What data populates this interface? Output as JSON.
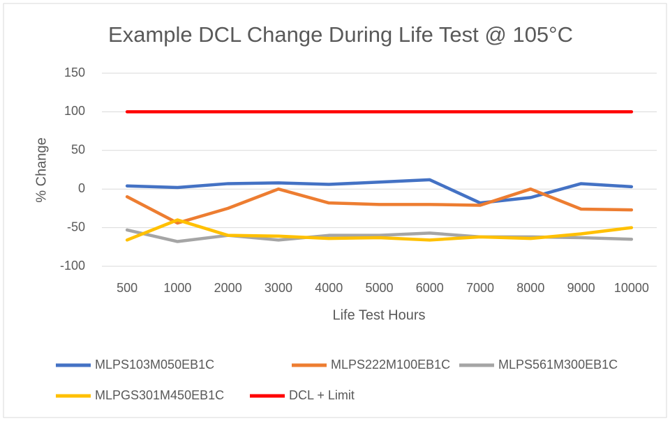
{
  "chart_data": {
    "type": "line",
    "title": "Example DCL Change During Life Test @ 105°C",
    "x_label": "Life Test Hours",
    "y_label": "% Change",
    "categories": [
      "500",
      "1000",
      "2000",
      "3000",
      "4000",
      "5000",
      "6000",
      "7000",
      "8000",
      "9000",
      "10000"
    ],
    "series": [
      {
        "name": "MLPS103M050EB1C",
        "color": "#4472c4",
        "values": [
          4,
          2,
          7,
          8,
          6,
          9,
          12,
          -18,
          -11,
          7,
          3
        ]
      },
      {
        "name": "MLPS222M100EB1C",
        "color": "#ed7d31",
        "values": [
          -10,
          -44,
          -25,
          0,
          -18,
          -20,
          -20,
          -21,
          0,
          -26,
          -27
        ]
      },
      {
        "name": "MLPS561M300EB1C",
        "color": "#a5a5a5",
        "values": [
          -53,
          -68,
          -60,
          -66,
          -60,
          -60,
          -57,
          -62,
          -62,
          -63,
          -65
        ]
      },
      {
        "name": "MLPGS301M450EB1C",
        "color": "#ffc000",
        "values": [
          -66,
          -40,
          -60,
          -61,
          -64,
          -63,
          -66,
          -62,
          -64,
          -58,
          -50
        ]
      },
      {
        "name": "DCL + Limit",
        "color": "#ff0000",
        "values": [
          100,
          100,
          100,
          100,
          100,
          100,
          100,
          100,
          100,
          100,
          100
        ]
      }
    ],
    "ylim": [
      -100,
      150
    ],
    "yticks": [
      -100,
      -50,
      0,
      50,
      100,
      150
    ],
    "grid": true,
    "legend": "bottom"
  }
}
